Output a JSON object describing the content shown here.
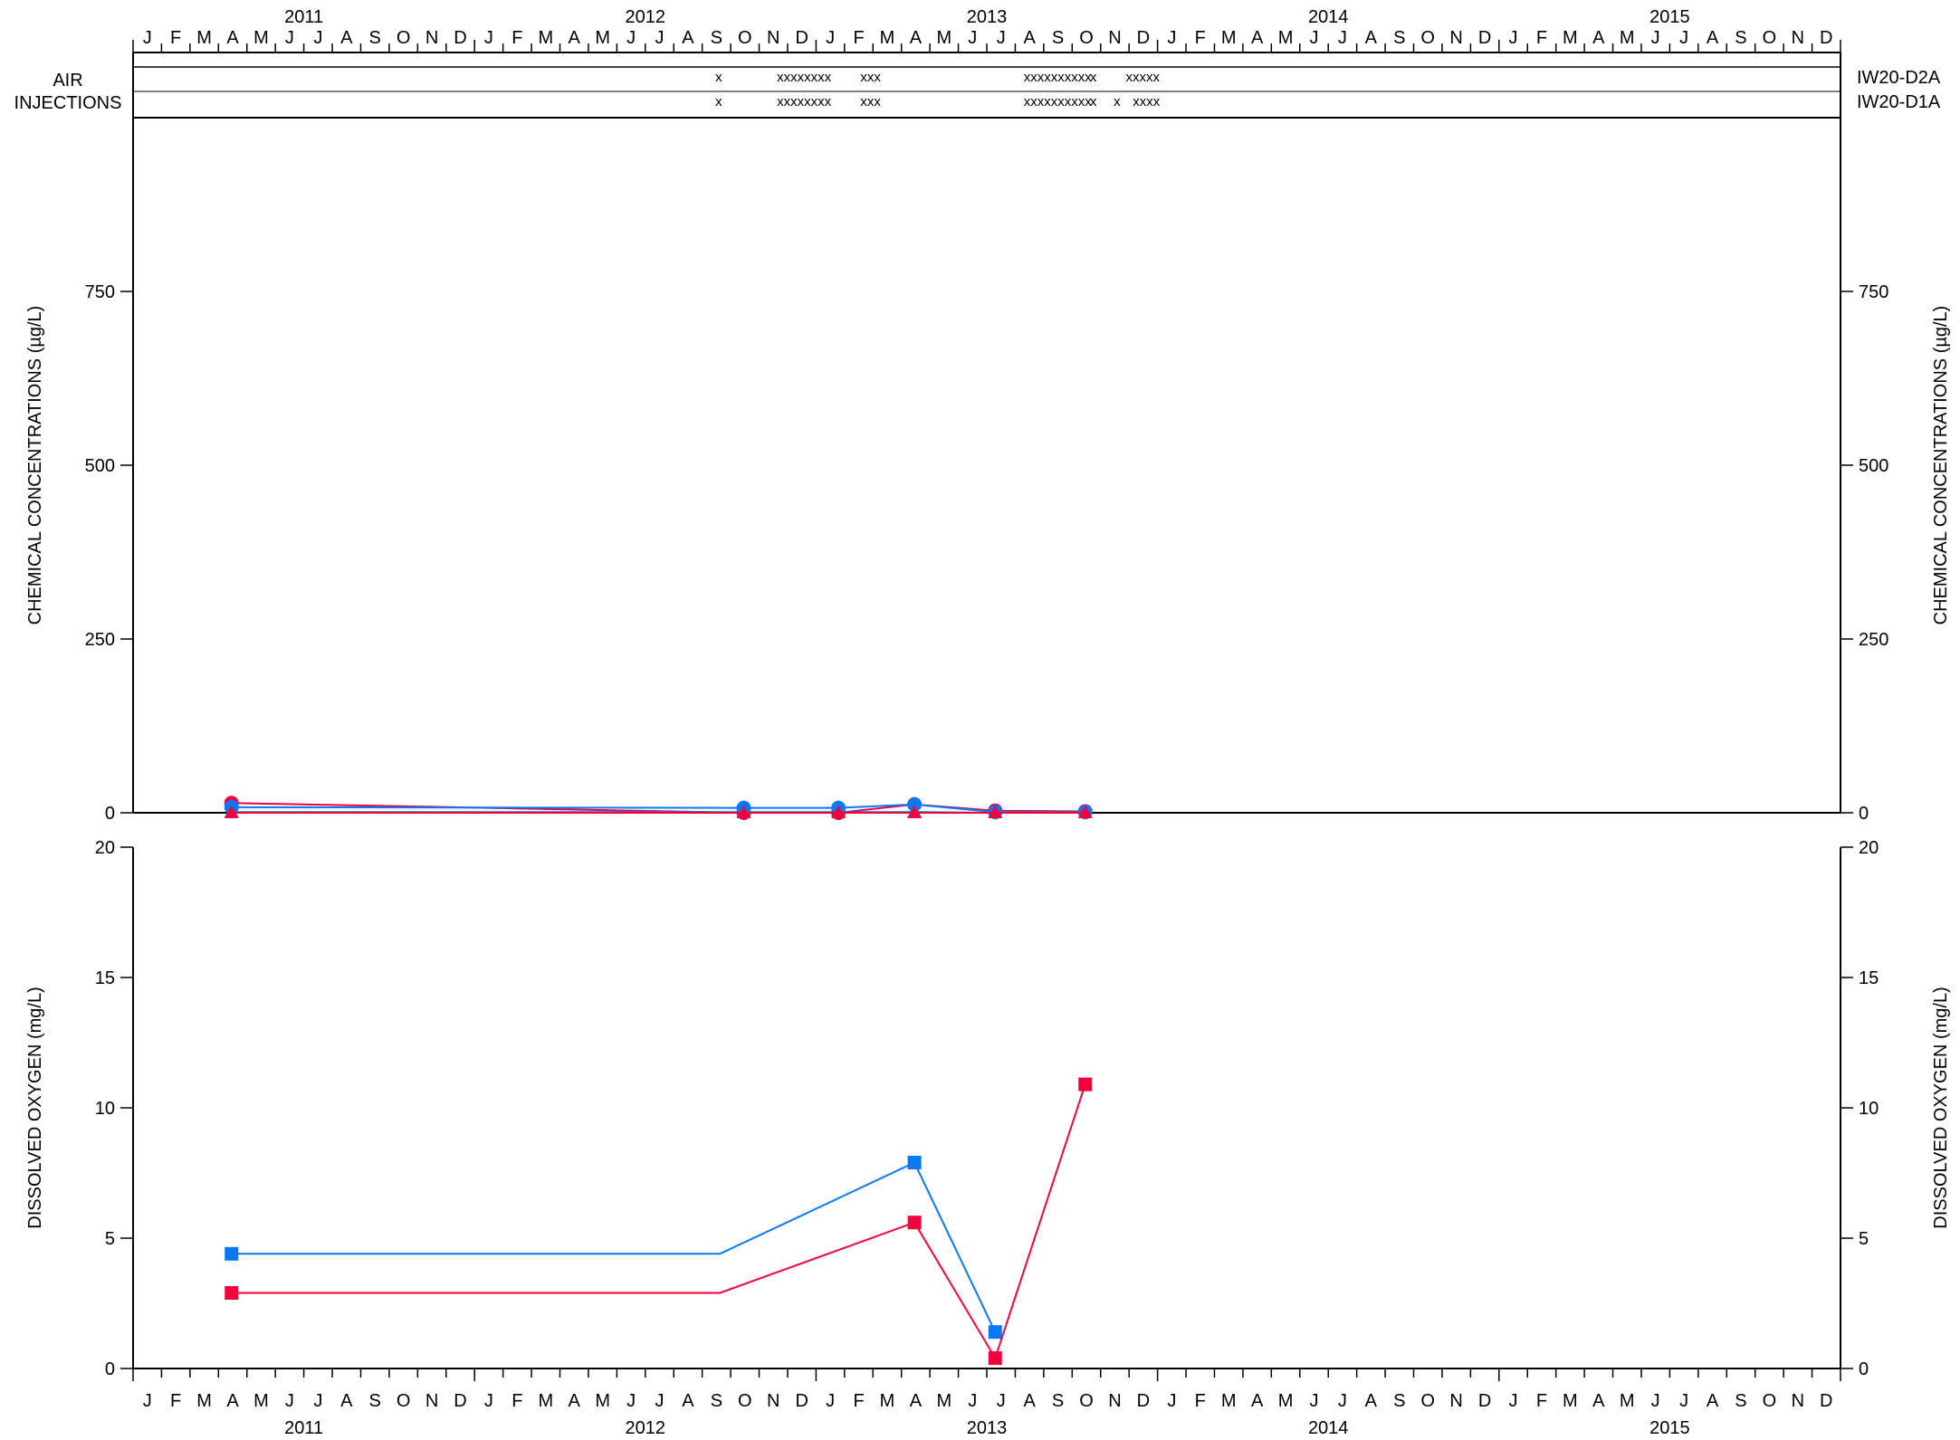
{
  "chart_data": [
    {
      "type": "line",
      "panel": "chemical",
      "ylabel": "CHEMICAL CONCENTRATIONS (µg/L)",
      "ylim": [
        0,
        1000
      ],
      "yticks": [
        0,
        250,
        500,
        750
      ],
      "series": [
        {
          "color": "#f0003c",
          "marker": "circle",
          "points": [
            {
              "x": "2011-04-15",
              "y": 14
            },
            {
              "x": "2012-10-15",
              "y": 0
            },
            {
              "x": "2013-01-25",
              "y": 0
            },
            {
              "x": "2013-04-15",
              "y": 12
            },
            {
              "x": "2013-07-10",
              "y": 3
            },
            {
              "x": "2013-10-15",
              "y": 2
            }
          ]
        },
        {
          "color": "#0a78f5",
          "marker": "circle",
          "points": [
            {
              "x": "2011-04-15",
              "y": 8
            },
            {
              "x": "2012-10-15",
              "y": 7
            },
            {
              "x": "2013-01-25",
              "y": 7
            },
            {
              "x": "2013-04-15",
              "y": 12
            },
            {
              "x": "2013-07-10",
              "y": 1
            },
            {
              "x": "2013-10-15",
              "y": 1
            }
          ]
        },
        {
          "color": "#0a78f5",
          "marker": "triangle",
          "points": [
            {
              "x": "2011-04-15",
              "y": 1
            },
            {
              "x": "2012-10-15",
              "y": 1
            },
            {
              "x": "2013-01-25",
              "y": 1
            },
            {
              "x": "2013-04-15",
              "y": 1
            },
            {
              "x": "2013-07-10",
              "y": 0
            },
            {
              "x": "2013-10-15",
              "y": 0
            }
          ]
        },
        {
          "color": "#f0003c",
          "marker": "triangle",
          "points": [
            {
              "x": "2011-04-15",
              "y": 0
            },
            {
              "x": "2012-10-15",
              "y": 0
            },
            {
              "x": "2013-01-25",
              "y": 0
            },
            {
              "x": "2013-04-15",
              "y": 0
            },
            {
              "x": "2013-07-10",
              "y": 0
            },
            {
              "x": "2013-10-15",
              "y": 0
            }
          ]
        }
      ]
    },
    {
      "type": "line",
      "panel": "oxygen",
      "ylabel": "DISSOLVED OXYGEN (mg/L)",
      "ylim": [
        0,
        20
      ],
      "yticks": [
        0,
        5,
        10,
        15,
        20
      ],
      "series": [
        {
          "color": "#0a78f5",
          "marker": "square",
          "points": [
            {
              "x": "2011-04-15",
              "y": 4.4
            },
            {
              "x": "2012-09-20",
              "y": 4.4,
              "marker": false
            },
            {
              "x": "2013-04-15",
              "y": 7.9
            },
            {
              "x": "2013-07-10",
              "y": 1.4
            }
          ]
        },
        {
          "color": "#f0003c",
          "marker": "square",
          "points": [
            {
              "x": "2011-04-15",
              "y": 2.9
            },
            {
              "x": "2012-09-20",
              "y": 2.9,
              "marker": false
            },
            {
              "x": "2013-04-15",
              "y": 5.6
            },
            {
              "x": "2013-07-10",
              "y": 0.4
            },
            {
              "x": "2013-10-15",
              "y": 10.9
            }
          ]
        }
      ]
    }
  ],
  "x_axis": {
    "start": "2011-01",
    "end": "2015-12",
    "month_letters": [
      "J",
      "F",
      "M",
      "A",
      "M",
      "J",
      "J",
      "A",
      "S",
      "O",
      "N",
      "D"
    ],
    "years": [
      "2011",
      "2012",
      "2013",
      "2014",
      "2015"
    ]
  },
  "air_injections": {
    "label_line1": "AIR",
    "label_line2": "INJECTIONS",
    "rows": [
      {
        "well": "IW20-D2A",
        "marks": [
          {
            "at": "2012-09-15",
            "text": "x"
          },
          {
            "at": "2012-11-20",
            "text": "xxxxxxxx"
          },
          {
            "at": "2013-02-18",
            "text": "xxx"
          },
          {
            "at": "2013-08-10",
            "text": "xxxxxxxxxx"
          },
          {
            "at": "2013-10-20",
            "text": "x"
          },
          {
            "at": "2013-11-28",
            "text": "xxxxx"
          }
        ]
      },
      {
        "well": "IW20-D1A",
        "marks": [
          {
            "at": "2012-09-15",
            "text": "x"
          },
          {
            "at": "2012-11-20",
            "text": "xxxxxxxx"
          },
          {
            "at": "2013-02-18",
            "text": "xxx"
          },
          {
            "at": "2013-08-10",
            "text": "xxxxxxxxxx"
          },
          {
            "at": "2013-10-20",
            "text": "x"
          },
          {
            "at": "2013-11-15",
            "text": "x"
          },
          {
            "at": "2013-12-05",
            "text": "xxxx"
          }
        ]
      }
    ]
  }
}
